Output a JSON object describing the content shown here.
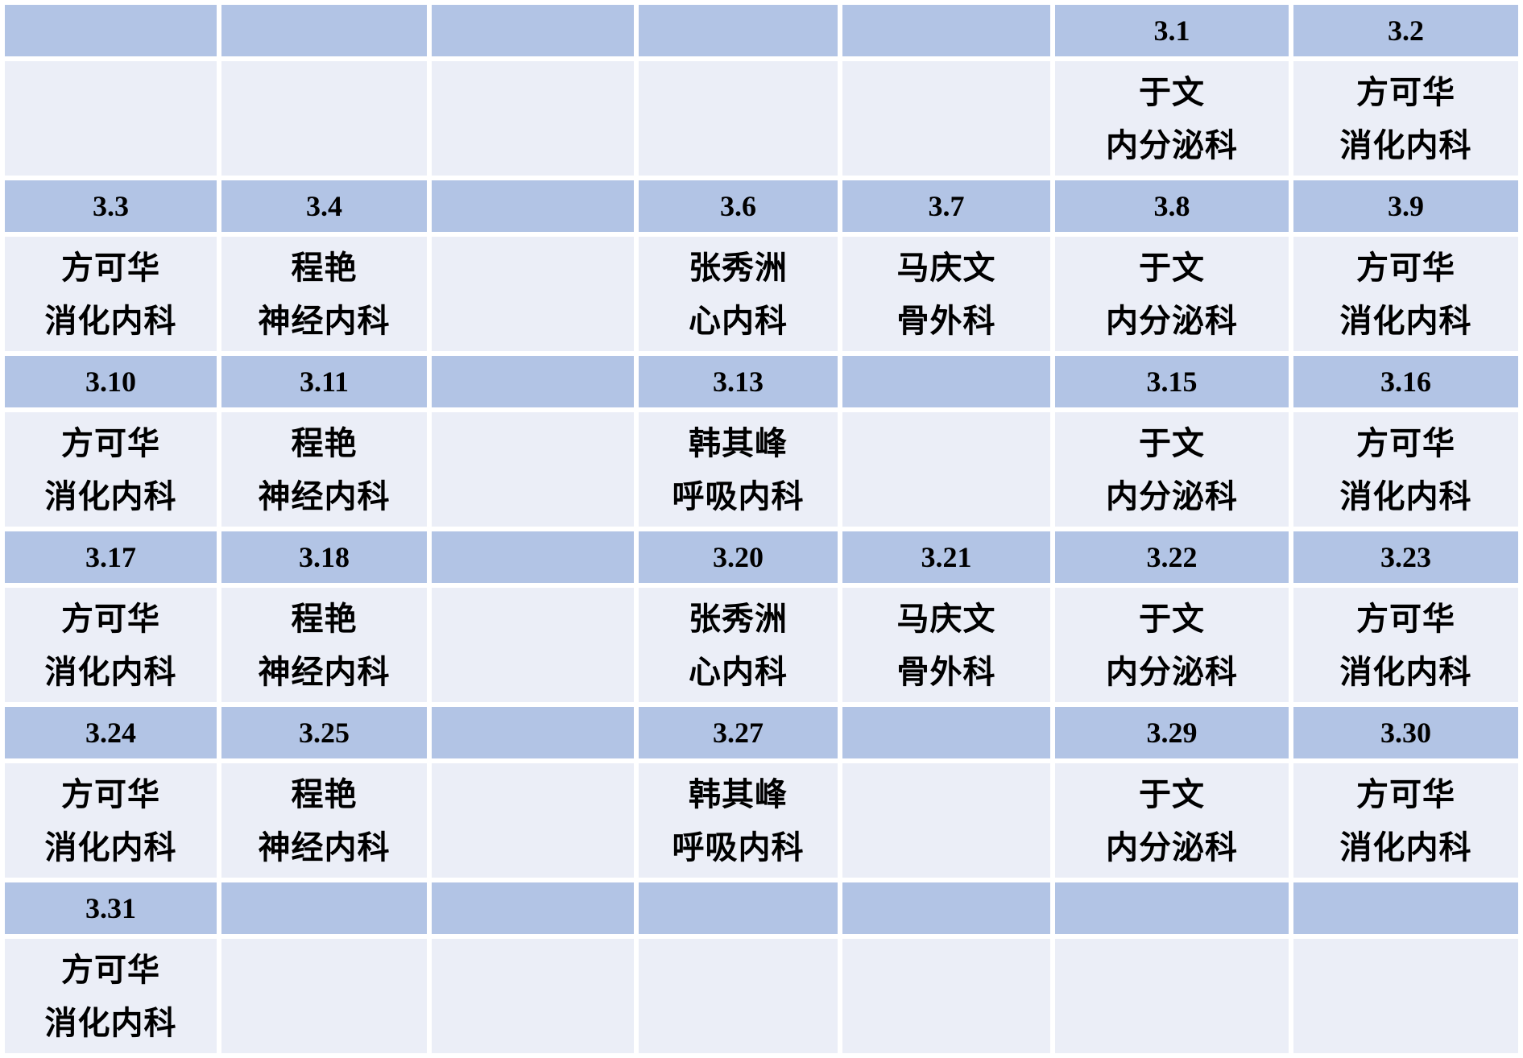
{
  "roster": {
    "colors": {
      "date_row_bg": "#b2c4e5",
      "person_row_bg": "#ebeef7",
      "grid_gap": "#ffffff",
      "text": "#000000"
    },
    "weeks": [
      {
        "days": [
          {
            "date": "",
            "name": "",
            "dept": ""
          },
          {
            "date": "",
            "name": "",
            "dept": ""
          },
          {
            "date": "",
            "name": "",
            "dept": ""
          },
          {
            "date": "",
            "name": "",
            "dept": ""
          },
          {
            "date": "",
            "name": "",
            "dept": ""
          },
          {
            "date": "3.1",
            "name": "于文",
            "dept": "内分泌科"
          },
          {
            "date": "3.2",
            "name": "方可华",
            "dept": "消化内科"
          }
        ]
      },
      {
        "days": [
          {
            "date": "3.3",
            "name": "方可华",
            "dept": "消化内科"
          },
          {
            "date": "3.4",
            "name": "程艳",
            "dept": "神经内科"
          },
          {
            "date": "",
            "name": "",
            "dept": ""
          },
          {
            "date": "3.6",
            "name": "张秀洲",
            "dept": "心内科"
          },
          {
            "date": "3.7",
            "name": "马庆文",
            "dept": "骨外科"
          },
          {
            "date": "3.8",
            "name": "于文",
            "dept": "内分泌科"
          },
          {
            "date": "3.9",
            "name": "方可华",
            "dept": "消化内科"
          }
        ]
      },
      {
        "days": [
          {
            "date": "3.10",
            "name": "方可华",
            "dept": "消化内科"
          },
          {
            "date": "3.11",
            "name": "程艳",
            "dept": "神经内科"
          },
          {
            "date": "",
            "name": "",
            "dept": ""
          },
          {
            "date": "3.13",
            "name": "韩其峰",
            "dept": "呼吸内科"
          },
          {
            "date": "",
            "name": "",
            "dept": ""
          },
          {
            "date": "3.15",
            "name": "于文",
            "dept": "内分泌科"
          },
          {
            "date": "3.16",
            "name": "方可华",
            "dept": "消化内科"
          }
        ]
      },
      {
        "days": [
          {
            "date": "3.17",
            "name": "方可华",
            "dept": "消化内科"
          },
          {
            "date": "3.18",
            "name": "程艳",
            "dept": "神经内科"
          },
          {
            "date": "",
            "name": "",
            "dept": ""
          },
          {
            "date": "3.20",
            "name": "张秀洲",
            "dept": "心内科"
          },
          {
            "date": "3.21",
            "name": "马庆文",
            "dept": "骨外科"
          },
          {
            "date": "3.22",
            "name": "于文",
            "dept": "内分泌科"
          },
          {
            "date": "3.23",
            "name": "方可华",
            "dept": "消化内科"
          }
        ]
      },
      {
        "days": [
          {
            "date": "3.24",
            "name": "方可华",
            "dept": "消化内科"
          },
          {
            "date": "3.25",
            "name": "程艳",
            "dept": "神经内科"
          },
          {
            "date": "",
            "name": "",
            "dept": ""
          },
          {
            "date": "3.27",
            "name": "韩其峰",
            "dept": "呼吸内科"
          },
          {
            "date": "",
            "name": "",
            "dept": ""
          },
          {
            "date": "3.29",
            "name": "于文",
            "dept": "内分泌科"
          },
          {
            "date": "3.30",
            "name": "方可华",
            "dept": "消化内科"
          }
        ]
      },
      {
        "days": [
          {
            "date": "3.31",
            "name": "方可华",
            "dept": "消化内科"
          },
          {
            "date": "",
            "name": "",
            "dept": ""
          },
          {
            "date": "",
            "name": "",
            "dept": ""
          },
          {
            "date": "",
            "name": "",
            "dept": ""
          },
          {
            "date": "",
            "name": "",
            "dept": ""
          },
          {
            "date": "",
            "name": "",
            "dept": ""
          },
          {
            "date": "",
            "name": "",
            "dept": ""
          }
        ]
      }
    ]
  }
}
